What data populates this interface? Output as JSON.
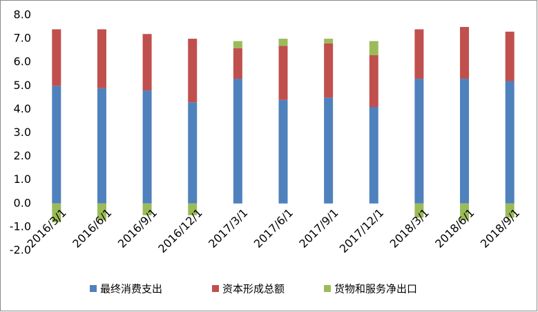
{
  "chart_data": {
    "type": "stacked_bar",
    "categories": [
      "2016/3/1",
      "2016/6/1",
      "2016/9/1",
      "2016/12/1",
      "2017/3/1",
      "2017/6/1",
      "2017/9/1",
      "2017/12/1",
      "2018/3/1",
      "2018/6/1",
      "2018/9/1"
    ],
    "series": [
      {
        "name": "最终消费支出",
        "color": "#4f81bd",
        "values": [
          5.0,
          4.9,
          4.8,
          4.3,
          5.3,
          4.4,
          4.5,
          4.1,
          5.3,
          5.3,
          5.2
        ]
      },
      {
        "name": "资本形成总额",
        "color": "#c0504d",
        "values": [
          2.4,
          2.5,
          2.4,
          2.7,
          1.3,
          2.3,
          2.3,
          2.2,
          2.1,
          2.2,
          2.1
        ]
      },
      {
        "name": "货物和服务净出口",
        "color": "#9bbb59",
        "values": [
          -0.8,
          -0.7,
          -0.5,
          -0.5,
          0.3,
          0.3,
          0.2,
          0.6,
          -0.6,
          -0.7,
          -0.6
        ]
      }
    ],
    "ylim": [
      -2,
      8
    ],
    "yticks": [
      {
        "value": -2,
        "label": "-2.0"
      },
      {
        "value": -1,
        "label": "-1.0"
      },
      {
        "value": 0,
        "label": "0.0"
      },
      {
        "value": 1,
        "label": "1.0"
      },
      {
        "value": 2,
        "label": "2.0"
      },
      {
        "value": 3,
        "label": "3.0"
      },
      {
        "value": 4,
        "label": "4.0"
      },
      {
        "value": 5,
        "label": "5.0"
      },
      {
        "value": 6,
        "label": "6.0"
      },
      {
        "value": 7,
        "label": "7.0"
      },
      {
        "value": 8,
        "label": "8.0"
      }
    ],
    "grid": false,
    "legend": "bottom"
  }
}
